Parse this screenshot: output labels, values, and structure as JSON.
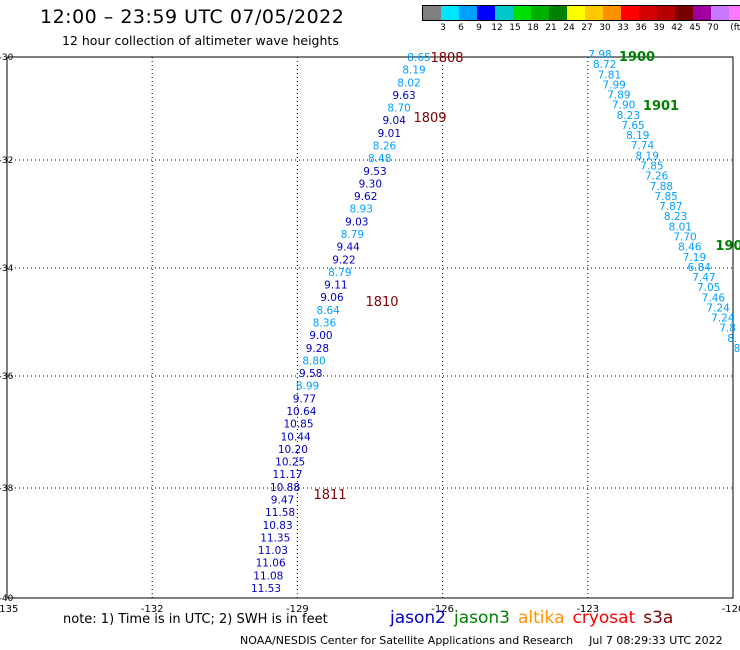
{
  "header": {
    "title": "12:00 – 23:59 UTC 07/05/2022",
    "subtitle": "12 hour collection of altimeter wave heights"
  },
  "colorbar": {
    "colors": [
      "#7f7f7f",
      "#00e6ff",
      "#00a0ff",
      "#0000ff",
      "#00c8c8",
      "#00e000",
      "#00b000",
      "#008000",
      "#ffff00",
      "#ffc800",
      "#ff9100",
      "#ff0000",
      "#d20000",
      "#b40000",
      "#780000",
      "#a000a0",
      "#c878ff",
      "#ff78ff",
      "#000000"
    ],
    "labels": [
      "3",
      "6",
      "9",
      "12",
      "15",
      "18",
      "21",
      "24",
      "27",
      "30",
      "33",
      "36",
      "39",
      "42",
      "45",
      "70",
      "(ft)"
    ]
  },
  "map": {
    "lat_labels": [
      "-30",
      "-32",
      "-34",
      "-36",
      "-38",
      "-40"
    ],
    "lon_labels": [
      "-135",
      "-132",
      "-129",
      "-126",
      "-123",
      "-120"
    ]
  },
  "tracks": [
    {
      "satellite": "jason2",
      "color_hex": "#0000c0",
      "time_labels": [
        {
          "text": "1808",
          "color": "#800000"
        },
        {
          "text": "1809",
          "color": "#800000"
        },
        {
          "text": "1810",
          "color": "#800000"
        },
        {
          "text": "1811",
          "color": "#800000"
        }
      ],
      "values": [
        "8.65",
        "8.19",
        "8.02",
        "9.63",
        "8.70",
        "9.04",
        "9.01",
        "8.26",
        "8.48",
        "9.53",
        "9.30",
        "9.62",
        "8.93",
        "9.03",
        "8.79",
        "9.44",
        "9.22",
        "8.79",
        "9.11",
        "9.06",
        "8.64",
        "8.36",
        "9.00",
        "9.28",
        "8.80",
        "9.58",
        "8.99",
        "9.77",
        "10.64",
        "10.85",
        "10.44",
        "10.20",
        "10.25",
        "11.17",
        "10.88",
        "9.47",
        "11.58",
        "10.83",
        "11.35",
        "11.03",
        "11.06",
        "11.08",
        "11.53"
      ]
    },
    {
      "satellite": "jason3",
      "color_hex": "#00a0ff",
      "time_labels": [
        {
          "text": "1900",
          "color": "#008000"
        },
        {
          "text": "1901",
          "color": "#008000"
        },
        {
          "text": "190",
          "color": "#008000"
        }
      ],
      "values_a": [
        "7.98",
        "8.72",
        "7.81",
        "7.99",
        "7.89",
        "7.90",
        "8.23",
        "7.65",
        "8.19",
        "7.74",
        "8.19",
        "7.85",
        "7.26",
        "7.88",
        "7.85",
        "7.87",
        "8.23",
        "8.01",
        "7.70",
        "8.46",
        "7.19",
        "6.84",
        "7.47",
        "7.05",
        "7.46",
        "7.24",
        "7.24",
        "7.8",
        "8.",
        "8"
      ]
    }
  ],
  "footer": {
    "note": "note:  1) Time is in UTC;  2) SWH is in feet",
    "satellites": [
      {
        "name": "jason2",
        "color": "#0000c8"
      },
      {
        "name": "jason3",
        "color": "#008000"
      },
      {
        "name": "altika",
        "color": "#ff9100"
      },
      {
        "name": "cryosat",
        "color": "#ff0000"
      },
      {
        "name": "s3a",
        "color": "#800000"
      }
    ],
    "credit": "NOAA/NESDIS Center for Satellite Applications and Research",
    "timestamp": "Jul  7 08:29:33 UTC 2022"
  }
}
